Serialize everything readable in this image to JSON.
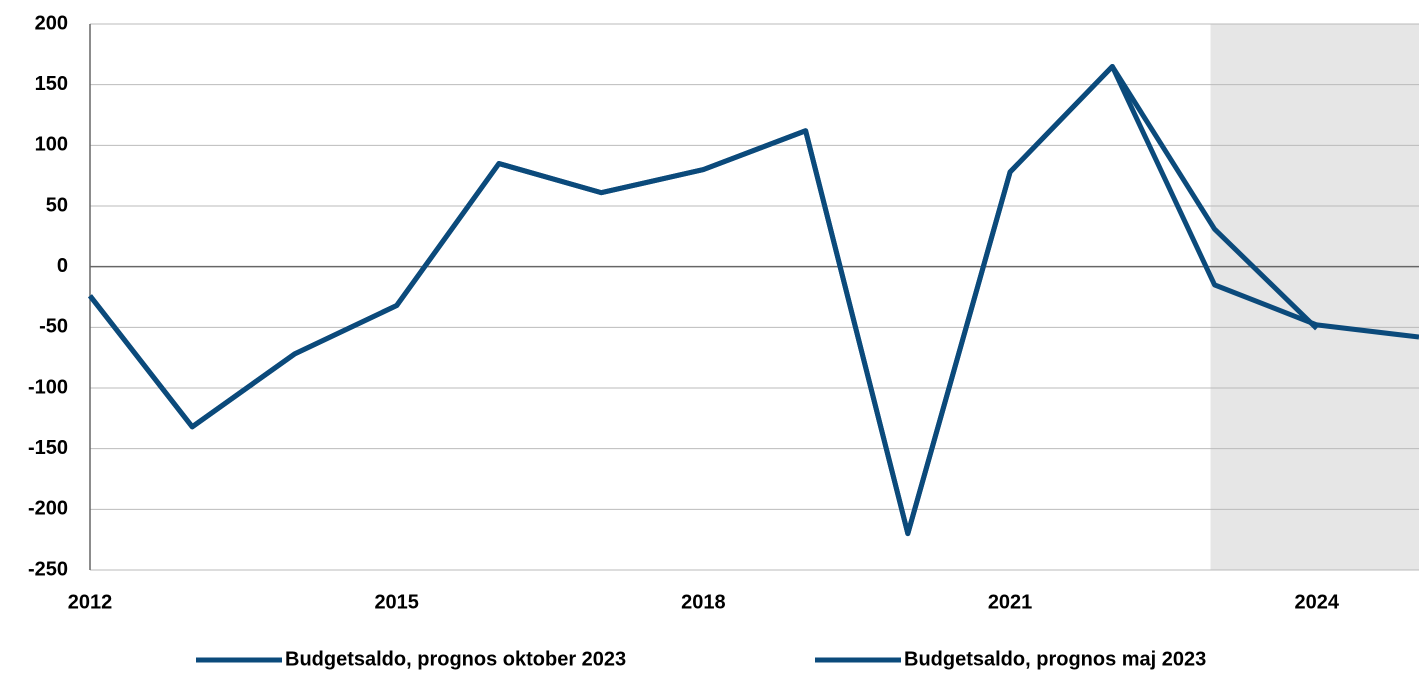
{
  "chart_data": {
    "type": "line",
    "x": [
      2012,
      2013,
      2014,
      2015,
      2016,
      2017,
      2018,
      2019,
      2020,
      2021,
      2022,
      2023,
      2024,
      2025
    ],
    "series": [
      {
        "name": "Budgetsaldo, prognos oktober 2023",
        "color": "#0b4a7b",
        "values": [
          -24,
          -132,
          -72,
          -32,
          85,
          61,
          80,
          112,
          -220,
          78,
          165,
          -15,
          -48,
          -58
        ]
      },
      {
        "name": "Budgetsaldo, prognos maj 2023",
        "color": "#0b4a7b",
        "values": [
          -24,
          -132,
          -72,
          -32,
          85,
          61,
          80,
          112,
          -220,
          78,
          165,
          31,
          -51,
          null
        ]
      }
    ],
    "xlim": [
      2012,
      2025
    ],
    "xticks": [
      2012,
      2015,
      2018,
      2021,
      2024
    ],
    "ylim": [
      -250,
      200
    ],
    "yticks": [
      -250,
      -200,
      -150,
      -100,
      -50,
      0,
      50,
      100,
      150,
      200
    ],
    "grid": true,
    "shaded_from": 2023,
    "legend": "bottom"
  }
}
